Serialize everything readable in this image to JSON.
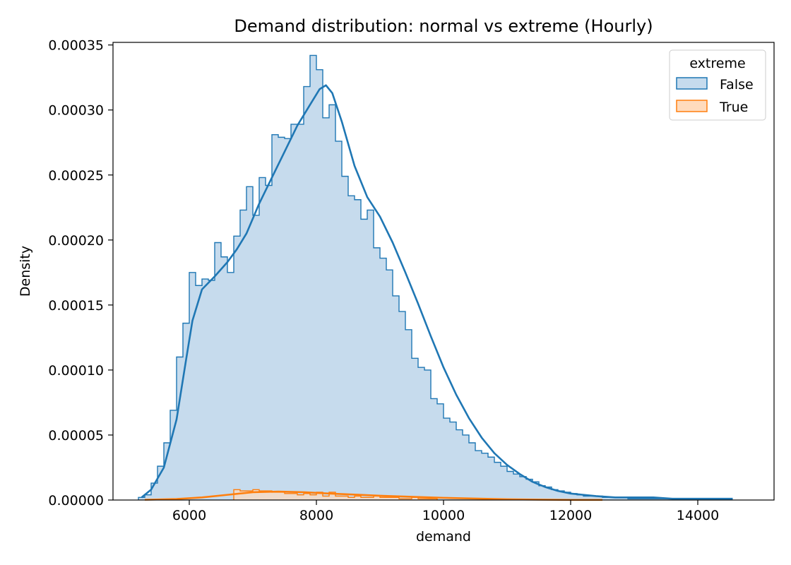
{
  "chart_data": {
    "type": "histogram",
    "title": "Demand distribution: normal vs extreme (Hourly)",
    "xlabel": "demand",
    "ylabel": "Density",
    "xlim": [
      4800,
      15200
    ],
    "ylim": [
      0,
      0.000352
    ],
    "xticks": [
      6000,
      8000,
      10000,
      12000,
      14000
    ],
    "yticks": [
      0,
      5e-05,
      0.0001,
      0.00015,
      0.0002,
      0.00025,
      0.0003,
      0.00035
    ],
    "ytick_labels": [
      "0.00000",
      "0.00005",
      "0.00010",
      "0.00015",
      "0.00020",
      "0.00025",
      "0.00030",
      "0.00035"
    ],
    "grid": false,
    "legend": {
      "title": "extreme",
      "placement": "top-right"
    },
    "bin_width": 100,
    "series": [
      {
        "name": "False",
        "color": "#1f77b4",
        "fill": "#c6dbed",
        "bin_start": 5200,
        "densities": [
          2e-06,
          4e-06,
          1.3e-05,
          2.6e-05,
          4.4e-05,
          6.9e-05,
          0.00011,
          0.000136,
          0.000175,
          0.000165,
          0.00017,
          0.000169,
          0.000198,
          0.000187,
          0.000175,
          0.000203,
          0.000223,
          0.000241,
          0.000219,
          0.000248,
          0.000242,
          0.000281,
          0.000279,
          0.000278,
          0.000289,
          0.000289,
          0.000318,
          0.000342,
          0.000331,
          0.000294,
          0.000304,
          0.000276,
          0.000249,
          0.000234,
          0.000231,
          0.000216,
          0.000223,
          0.000194,
          0.000186,
          0.000177,
          0.000157,
          0.000145,
          0.000131,
          0.000109,
          0.000102,
          0.0001,
          7.8e-05,
          7.4e-05,
          6.3e-05,
          6e-05,
          5.4e-05,
          5e-05,
          4.4e-05,
          3.8e-05,
          3.6e-05,
          3.3e-05,
          2.9e-05,
          2.6e-05,
          2.2e-05,
          2e-05,
          1.8e-05,
          1.6e-05,
          1.4e-05,
          1.1e-05,
          1e-05,
          8e-06,
          7e-06,
          6e-06,
          5e-06,
          4e-06,
          3e-06,
          3e-06,
          3e-06,
          2e-06,
          2e-06,
          2e-06,
          2e-06,
          1e-06,
          1e-06,
          1e-06,
          1e-06,
          1e-06,
          1e-06,
          1e-06,
          1e-06,
          1e-06,
          1e-06,
          1e-06,
          1e-06,
          1e-06,
          1e-06,
          1e-06,
          1e-06
        ],
        "kde_x": [
          5250,
          5400,
          5600,
          5800,
          5950,
          6050,
          6200,
          6400,
          6600,
          6750,
          6900,
          7100,
          7300,
          7500,
          7700,
          7900,
          8050,
          8150,
          8250,
          8400,
          8600,
          8800,
          9000,
          9200,
          9400,
          9600,
          9800,
          10000,
          10200,
          10400,
          10600,
          10800,
          11000,
          11200,
          11400,
          11600,
          11800,
          12000,
          12200,
          12400,
          12700,
          13000,
          13300,
          13600,
          13900,
          14200,
          14550
        ],
        "kde_y": [
          2e-06,
          8e-06,
          2.5e-05,
          6.2e-05,
          0.000108,
          0.000138,
          0.000162,
          0.000172,
          0.000183,
          0.000193,
          0.000205,
          0.000228,
          0.000248,
          0.000268,
          0.000288,
          0.000304,
          0.000316,
          0.000319,
          0.000313,
          0.000291,
          0.000257,
          0.000233,
          0.000218,
          0.000198,
          0.000175,
          0.000151,
          0.000126,
          0.000102,
          8.1e-05,
          6.3e-05,
          4.8e-05,
          3.6e-05,
          2.7e-05,
          2e-05,
          1.4e-05,
          1e-05,
          7e-06,
          5e-06,
          4e-06,
          3e-06,
          2e-06,
          2e-06,
          2e-06,
          1e-06,
          1e-06,
          1e-06,
          1e-06
        ]
      },
      {
        "name": "True",
        "color": "#ff7f0e",
        "fill": "#ffdbbd",
        "bin_start": 6700,
        "densities": [
          8e-06,
          7e-06,
          7e-06,
          8e-06,
          7e-06,
          7e-06,
          6e-06,
          6e-06,
          5e-06,
          5e-06,
          4e-06,
          5e-06,
          4e-06,
          6e-06,
          3e-06,
          6e-06,
          3e-06,
          3e-06,
          2e-06,
          3e-06,
          2e-06,
          2e-06,
          3e-06,
          2e-06,
          2e-06,
          2e-06,
          1e-06,
          1e-06,
          2e-06,
          1e-06,
          1e-06,
          1e-06
        ],
        "kde_x": [
          5300,
          5800,
          6200,
          6600,
          7000,
          7400,
          7800,
          8200,
          8600,
          9000,
          9500,
          10000,
          10500,
          11000,
          11500,
          12000,
          12500
        ],
        "kde_y": [
          2e-07,
          8e-07,
          2e-06,
          4e-06,
          6e-06,
          6.5e-06,
          6e-06,
          5e-06,
          4.2e-06,
          3.3e-06,
          2.5e-06,
          1.7e-06,
          1.1e-06,
          6e-07,
          3e-07,
          1e-07,
          1e-07
        ]
      }
    ]
  }
}
